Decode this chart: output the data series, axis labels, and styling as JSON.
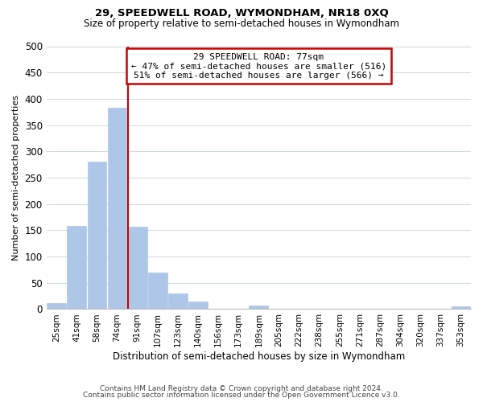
{
  "title": "29, SPEEDWELL ROAD, WYMONDHAM, NR18 0XQ",
  "subtitle": "Size of property relative to semi-detached houses in Wymondham",
  "xlabel": "Distribution of semi-detached houses by size in Wymondham",
  "ylabel": "Number of semi-detached properties",
  "bar_labels": [
    "25sqm",
    "41sqm",
    "58sqm",
    "74sqm",
    "91sqm",
    "107sqm",
    "123sqm",
    "140sqm",
    "156sqm",
    "173sqm",
    "189sqm",
    "205sqm",
    "222sqm",
    "238sqm",
    "255sqm",
    "271sqm",
    "287sqm",
    "304sqm",
    "320sqm",
    "337sqm",
    "353sqm"
  ],
  "bar_values": [
    12,
    158,
    281,
    383,
    157,
    70,
    30,
    14,
    0,
    0,
    7,
    0,
    0,
    0,
    0,
    0,
    0,
    0,
    0,
    0,
    5
  ],
  "bar_color": "#aec6e8",
  "bar_edge_color": "#aec6e8",
  "vline_color": "#cc0000",
  "vline_bar_index": 4,
  "annotation_title": "29 SPEEDWELL ROAD: 77sqm",
  "annotation_line1": "← 47% of semi-detached houses are smaller (516)",
  "annotation_line2": "51% of semi-detached houses are larger (566) →",
  "annotation_box_color": "#ffffff",
  "annotation_box_edge": "#cc0000",
  "ylim": [
    0,
    500
  ],
  "yticks": [
    0,
    50,
    100,
    150,
    200,
    250,
    300,
    350,
    400,
    450,
    500
  ],
  "footer1": "Contains HM Land Registry data © Crown copyright and database right 2024.",
  "footer2": "Contains public sector information licensed under the Open Government Licence v3.0.",
  "background_color": "#ffffff",
  "grid_color": "#ccd9e8"
}
